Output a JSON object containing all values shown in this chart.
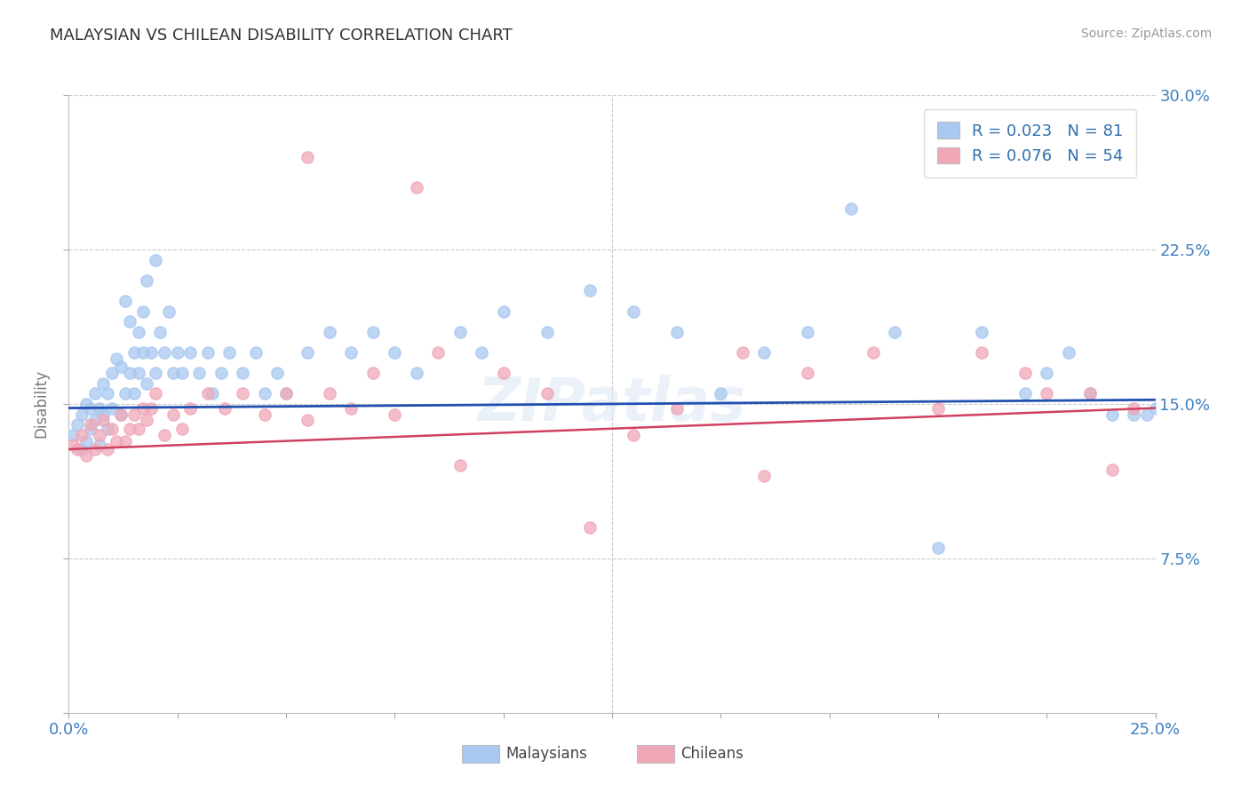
{
  "title": "MALAYSIAN VS CHILEAN DISABILITY CORRELATION CHART",
  "source": "Source: ZipAtlas.com",
  "ylabel_label": "Disability",
  "ylabel_ticks": [
    0.0,
    0.075,
    0.15,
    0.225,
    0.3
  ],
  "ylabel_tick_labels": [
    "",
    "7.5%",
    "15.0%",
    "22.5%",
    "30.0%"
  ],
  "xlim": [
    0.0,
    0.25
  ],
  "ylim": [
    0.0,
    0.3
  ],
  "blue_color": "#a8c8f0",
  "pink_color": "#f0a8b8",
  "blue_line_color": "#2050b0",
  "pink_line_color": "#d04060",
  "legend_text_color": "#3070b0",
  "watermark": "ZIPatlas",
  "R_blue": 0.023,
  "N_blue": 81,
  "R_pink": 0.076,
  "N_pink": 54,
  "blue_scatter_x": [
    0.001,
    0.002,
    0.003,
    0.003,
    0.004,
    0.004,
    0.005,
    0.005,
    0.006,
    0.006,
    0.007,
    0.007,
    0.008,
    0.008,
    0.009,
    0.009,
    0.01,
    0.01,
    0.011,
    0.012,
    0.012,
    0.013,
    0.013,
    0.014,
    0.014,
    0.015,
    0.015,
    0.016,
    0.016,
    0.017,
    0.017,
    0.018,
    0.018,
    0.019,
    0.02,
    0.02,
    0.021,
    0.022,
    0.023,
    0.024,
    0.025,
    0.026,
    0.028,
    0.03,
    0.032,
    0.033,
    0.035,
    0.037,
    0.04,
    0.043,
    0.045,
    0.048,
    0.05,
    0.055,
    0.06,
    0.065,
    0.07,
    0.075,
    0.08,
    0.09,
    0.095,
    0.1,
    0.11,
    0.12,
    0.13,
    0.14,
    0.15,
    0.16,
    0.17,
    0.18,
    0.19,
    0.2,
    0.21,
    0.22,
    0.225,
    0.23,
    0.235,
    0.24,
    0.245,
    0.248,
    0.25
  ],
  "blue_scatter_y": [
    0.135,
    0.14,
    0.128,
    0.145,
    0.132,
    0.15,
    0.138,
    0.148,
    0.142,
    0.155,
    0.13,
    0.148,
    0.145,
    0.16,
    0.138,
    0.155,
    0.148,
    0.165,
    0.172,
    0.145,
    0.168,
    0.2,
    0.155,
    0.19,
    0.165,
    0.175,
    0.155,
    0.185,
    0.165,
    0.195,
    0.175,
    0.21,
    0.16,
    0.175,
    0.22,
    0.165,
    0.185,
    0.175,
    0.195,
    0.165,
    0.175,
    0.165,
    0.175,
    0.165,
    0.175,
    0.155,
    0.165,
    0.175,
    0.165,
    0.175,
    0.155,
    0.165,
    0.155,
    0.175,
    0.185,
    0.175,
    0.185,
    0.175,
    0.165,
    0.185,
    0.175,
    0.195,
    0.185,
    0.205,
    0.195,
    0.185,
    0.155,
    0.175,
    0.185,
    0.245,
    0.185,
    0.08,
    0.185,
    0.155,
    0.165,
    0.175,
    0.155,
    0.145,
    0.145,
    0.145,
    0.148
  ],
  "pink_scatter_x": [
    0.001,
    0.002,
    0.003,
    0.004,
    0.005,
    0.006,
    0.007,
    0.008,
    0.009,
    0.01,
    0.011,
    0.012,
    0.013,
    0.014,
    0.015,
    0.016,
    0.017,
    0.018,
    0.019,
    0.02,
    0.022,
    0.024,
    0.026,
    0.028,
    0.032,
    0.036,
    0.04,
    0.045,
    0.05,
    0.055,
    0.06,
    0.065,
    0.07,
    0.075,
    0.085,
    0.09,
    0.1,
    0.11,
    0.12,
    0.13,
    0.14,
    0.155,
    0.17,
    0.185,
    0.2,
    0.21,
    0.22,
    0.225,
    0.235,
    0.24,
    0.055,
    0.08,
    0.16,
    0.245
  ],
  "pink_scatter_y": [
    0.13,
    0.128,
    0.135,
    0.125,
    0.14,
    0.128,
    0.135,
    0.142,
    0.128,
    0.138,
    0.132,
    0.145,
    0.132,
    0.138,
    0.145,
    0.138,
    0.148,
    0.142,
    0.148,
    0.155,
    0.135,
    0.145,
    0.138,
    0.148,
    0.155,
    0.148,
    0.155,
    0.145,
    0.155,
    0.142,
    0.155,
    0.148,
    0.165,
    0.145,
    0.175,
    0.12,
    0.165,
    0.155,
    0.09,
    0.135,
    0.148,
    0.175,
    0.165,
    0.175,
    0.148,
    0.175,
    0.165,
    0.155,
    0.155,
    0.118,
    0.27,
    0.255,
    0.115,
    0.148
  ],
  "blue_line_x0": 0.0,
  "blue_line_y0": 0.148,
  "blue_line_x1": 0.25,
  "blue_line_y1": 0.152,
  "pink_line_x0": 0.0,
  "pink_line_y0": 0.128,
  "pink_line_x1": 0.25,
  "pink_line_y1": 0.148
}
